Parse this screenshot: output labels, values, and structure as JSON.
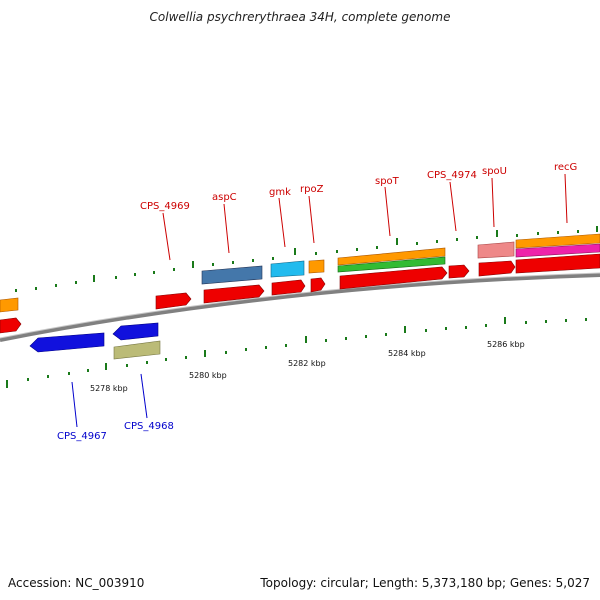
{
  "title": "Colwellia psychrerythraea 34H, complete genome",
  "footer": {
    "accession": "Accession: NC_003910",
    "topology": "Topology: circular; Length: 5,373,180 bp; Genes: 5,027"
  },
  "scale_labels": [
    "5278 kbp",
    "5280 kbp",
    "5282 kbp",
    "5284 kbp",
    "5286 kbp"
  ],
  "upper_labels": [
    "CPS_4969",
    "aspC",
    "gmk",
    "rpoZ",
    "spoT",
    "CPS_4974",
    "spoU",
    "recG"
  ],
  "lower_labels": [
    "CPS_4967",
    "CPS_4968"
  ],
  "colors": {
    "upper_label": "#cc0000",
    "lower_label": "#0000cc",
    "tick": "#1a7a1a",
    "backbone": "#888888",
    "red": "#ee0000",
    "blue": "#1111dd",
    "orange": "#ff9900",
    "green": "#33bb33",
    "magenta": "#ee22aa",
    "steelblue": "#4477aa",
    "cyan": "#22bbee",
    "pink": "#ee8888",
    "khaki": "#bbbb77"
  }
}
